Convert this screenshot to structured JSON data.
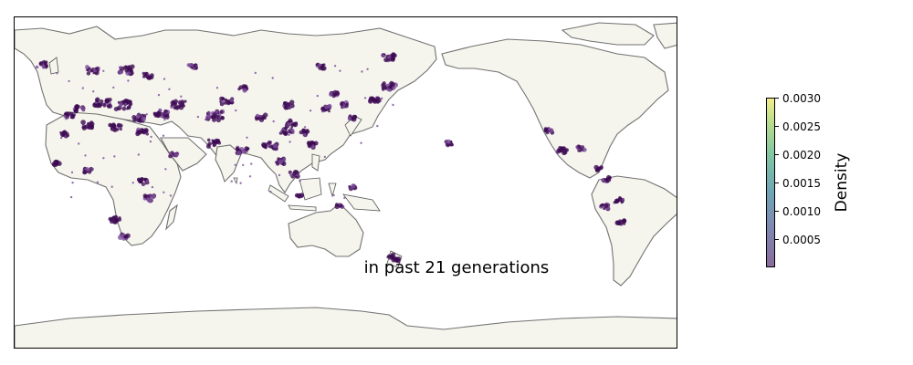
{
  "map": {
    "caption": "in past 21 generations",
    "land_color": "#f5f5ee",
    "coast_color": "#444444",
    "point_color": "#3d0b52",
    "point_color_light": "#7d4d9a"
  },
  "colorbar": {
    "title": "Density",
    "ticks": [
      "0.0030",
      "0.0025",
      "0.0020",
      "0.0015",
      "0.0010",
      "0.0005"
    ],
    "colors": [
      "#8a6b9c",
      "#7f8bb2",
      "#6fa6b5",
      "#7fc4a4",
      "#b7dc8e",
      "#f2ee8a"
    ]
  }
}
